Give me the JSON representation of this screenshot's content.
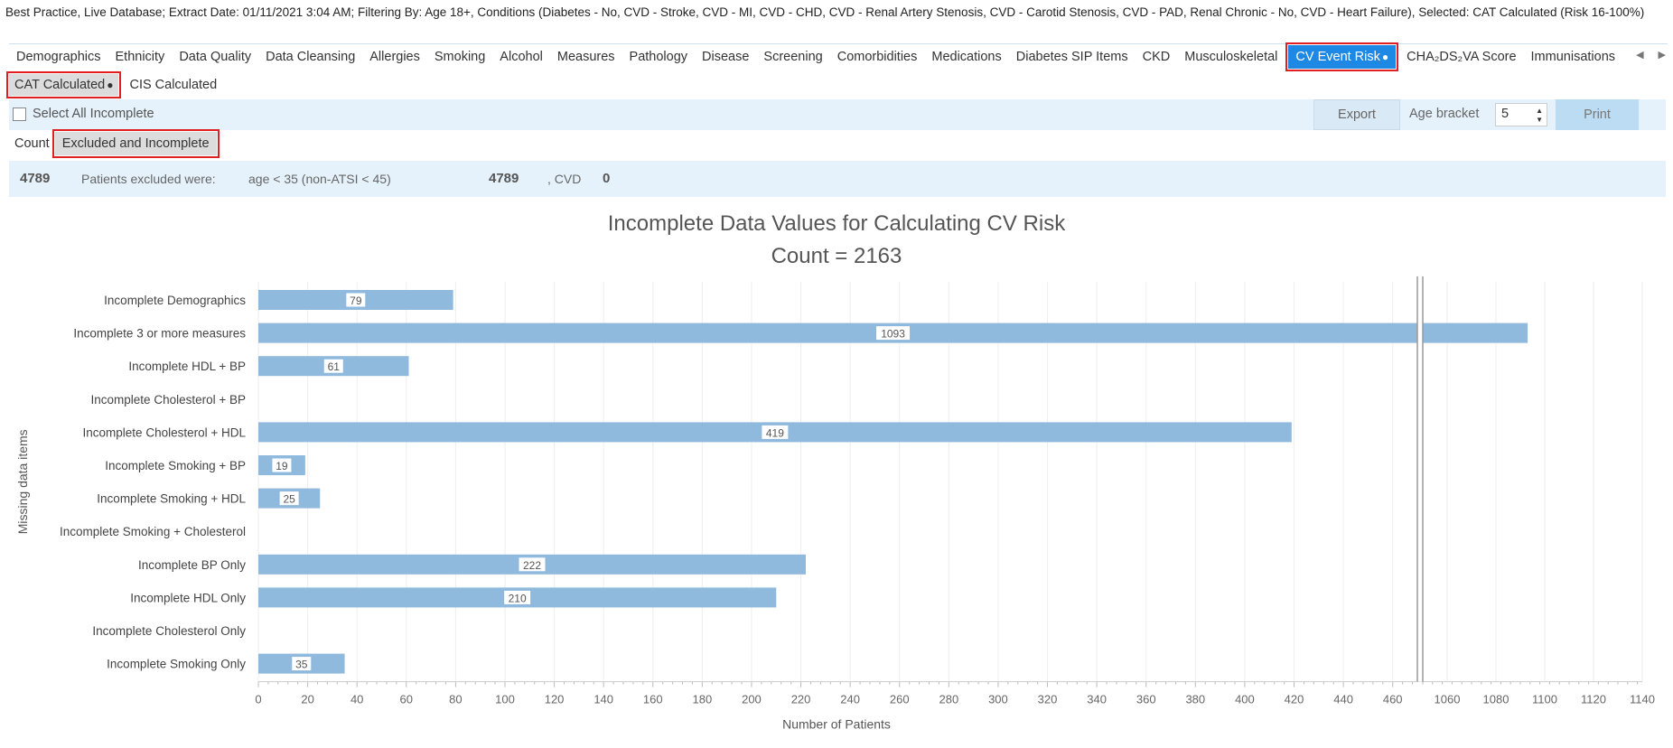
{
  "header": {
    "filter_text": "Best Practice, Live Database; Extract Date: 01/11/2021 3:04 AM; Filtering By: Age 18+, Conditions (Diabetes - No, CVD - Stroke, CVD - MI, CVD - CHD, CVD - Renal Artery Stenosis, CVD - Carotid Stenosis, CVD - PAD, Renal Chronic - No, CVD - Heart Failure), Selected: CAT Calculated (Risk 16-100%)"
  },
  "tabs": [
    {
      "label": "Demographics"
    },
    {
      "label": "Ethnicity"
    },
    {
      "label": "Data Quality"
    },
    {
      "label": "Data Cleansing"
    },
    {
      "label": "Allergies"
    },
    {
      "label": "Smoking"
    },
    {
      "label": "Alcohol"
    },
    {
      "label": "Measures"
    },
    {
      "label": "Pathology"
    },
    {
      "label": "Disease"
    },
    {
      "label": "Screening"
    },
    {
      "label": "Comorbidities"
    },
    {
      "label": "Medications"
    },
    {
      "label": "Diabetes SIP Items"
    },
    {
      "label": "CKD"
    },
    {
      "label": "Musculoskeletal"
    },
    {
      "label": "CV Event Risk",
      "active": true
    },
    {
      "label": "CHA₂DS₂VA Score"
    },
    {
      "label": "Immunisations"
    }
  ],
  "active_dot": "●",
  "scroll": {
    "left": "◀",
    "right": "▶"
  },
  "subtabs": [
    {
      "label": "CAT Calculated",
      "active": true
    },
    {
      "label": "CIS Calculated"
    }
  ],
  "toolbar": {
    "select_all_label": "Select All Incomplete",
    "export_label": "Export",
    "age_bracket_label": "Age bracket",
    "age_bracket_value": "5",
    "print_label": "Print",
    "spinner_up": "▲",
    "spinner_down": "▼"
  },
  "count_tabs": {
    "count_label": "Count",
    "excluded_label": "Excluded and Incomplete"
  },
  "stats": {
    "excluded_total": "4789",
    "excluded_text": "Patients excluded were:",
    "age_rule": "age < 35 (non-ATSI < 45)",
    "age_count": "4789",
    "cvd_label": ", CVD",
    "cvd_count": "0"
  },
  "chart_data": {
    "type": "bar",
    "orientation": "horizontal",
    "title": "Incomplete Data Values for Calculating CV Risk",
    "subtitle": "Count = 2163",
    "xlabel": "Number of Patients",
    "ylabel": "Missing data items",
    "scale_break": {
      "from": 470,
      "to": 1050
    },
    "xlim": [
      0,
      1140
    ],
    "xticks": [
      0,
      20,
      40,
      60,
      80,
      100,
      120,
      140,
      160,
      180,
      200,
      220,
      240,
      260,
      280,
      300,
      320,
      340,
      360,
      380,
      400,
      420,
      440,
      460,
      1060,
      1080,
      1100,
      1120,
      1140
    ],
    "grid": true,
    "colors": {
      "bar": "#8fb9dd",
      "label_border": "#8fb9dd"
    },
    "categories": [
      "Incomplete Demographics",
      "Incomplete 3 or more measures",
      "Incomplete HDL + BP",
      "Incomplete Cholesterol + BP",
      "Incomplete Cholesterol + HDL",
      "Incomplete Smoking + BP",
      "Incomplete Smoking + HDL",
      "Incomplete Smoking + Cholesterol",
      "Incomplete BP Only",
      "Incomplete HDL Only",
      "Incomplete Cholesterol Only",
      "Incomplete Smoking Only"
    ],
    "values": [
      79,
      1093,
      61,
      0,
      419,
      19,
      25,
      0,
      222,
      210,
      0,
      35
    ]
  }
}
